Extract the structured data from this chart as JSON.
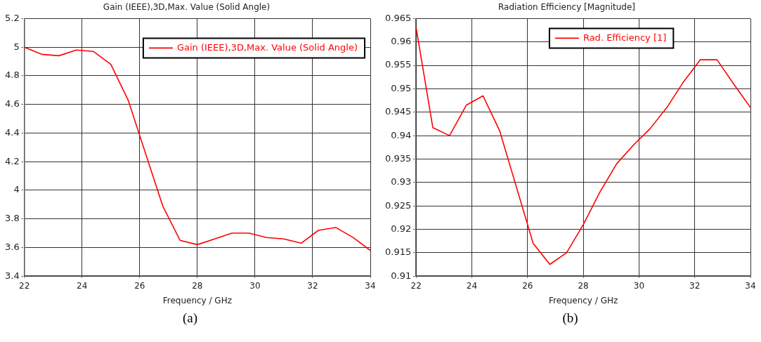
{
  "chart_data": [
    {
      "type": "line",
      "title": "Gain (IEEE),3D,Max. Value (Solid Angle)",
      "xlabel": "Frequency / GHz",
      "xlim": [
        22,
        34
      ],
      "xticks": [
        22,
        24,
        26,
        28,
        30,
        32,
        34
      ],
      "ylim": [
        3.4,
        5.2
      ],
      "yticks": [
        3.4,
        3.6,
        3.8,
        4,
        4.2,
        4.4,
        4.6,
        4.8,
        5,
        5.2
      ],
      "grid": true,
      "legend": "top right",
      "line_style": "solid",
      "x": [
        22,
        22.6,
        23.2,
        23.8,
        24.4,
        25,
        25.6,
        26.2,
        26.8,
        27.4,
        28,
        28.6,
        29.2,
        29.8,
        30.4,
        31,
        31.6,
        32.2,
        32.8,
        33.4,
        34
      ],
      "series": [
        {
          "name": "Gain (IEEE),3D,Max. Value (Solid Angle)",
          "color": "#ff0000",
          "values": [
            5.0,
            4.95,
            4.94,
            4.98,
            4.97,
            4.88,
            4.63,
            4.26,
            3.89,
            3.65,
            3.62,
            3.66,
            3.7,
            3.7,
            3.67,
            3.66,
            3.63,
            3.72,
            3.74,
            3.67,
            3.58
          ]
        }
      ],
      "annotations": [
        "(a)"
      ]
    },
    {
      "type": "line",
      "title": "Radiation Efficiency [Magnitude]",
      "xlabel": "Frequency / GHz",
      "xlim": [
        22,
        34
      ],
      "xticks": [
        22,
        24,
        26,
        28,
        30,
        32,
        34
      ],
      "ylim": [
        0.91,
        0.965
      ],
      "yticks": [
        0.91,
        0.915,
        0.92,
        0.925,
        0.93,
        0.935,
        0.94,
        0.945,
        0.95,
        0.955,
        0.96,
        0.965
      ],
      "grid": true,
      "legend": "top",
      "line_style": "solid",
      "x": [
        22,
        22.6,
        23.2,
        23.8,
        24.4,
        25,
        25.6,
        26.2,
        26.8,
        27.4,
        28,
        28.6,
        29.2,
        29.8,
        30.4,
        31,
        31.6,
        32.2,
        32.8,
        33.4,
        34
      ],
      "series": [
        {
          "name": "Rad. Efficiency [1]",
          "color": "#ff0000",
          "values": [
            0.963,
            0.9417,
            0.94,
            0.9465,
            0.9485,
            0.941,
            0.929,
            0.917,
            0.9125,
            0.915,
            0.921,
            0.928,
            0.934,
            0.938,
            0.9415,
            0.946,
            0.9515,
            0.9562,
            0.9562,
            0.951,
            0.946
          ]
        }
      ],
      "annotations": [
        "(b)"
      ]
    }
  ]
}
